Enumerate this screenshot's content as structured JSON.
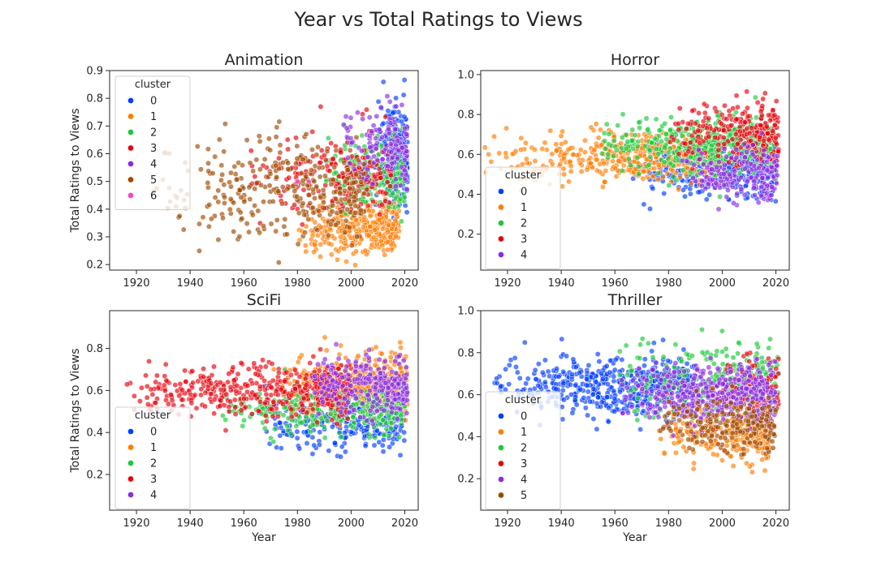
{
  "figure": {
    "title": "Year vs Total Ratings to Views"
  },
  "palette": {
    "0": "#023eff",
    "1": "#ff7c00",
    "2": "#1ac938",
    "3": "#e8000b",
    "4": "#8b2be2",
    "5": "#9f4800",
    "6": "#f14cc1"
  },
  "chart_data": [
    {
      "type": "scatter",
      "title": "Animation",
      "xlabel": "",
      "ylabel": "Total Ratings to Views",
      "xlim": [
        1910,
        2025
      ],
      "ylim": [
        0.18,
        0.9
      ],
      "xticks": [
        "1920",
        "1940",
        "1960",
        "1980",
        "2000",
        "2020"
      ],
      "yticks": [
        "0.2",
        "0.3",
        "0.4",
        "0.5",
        "0.6",
        "0.7",
        "0.8",
        "0.9"
      ],
      "legend": {
        "title": "cluster",
        "placement": "upper-left",
        "entries": [
          "0",
          "1",
          "2",
          "3",
          "4",
          "5",
          "6"
        ]
      },
      "series": [
        {
          "name": "0",
          "x_range": [
            2008,
            2021
          ],
          "y_mean": 0.6,
          "y_sd": 0.1,
          "count": 220
        },
        {
          "name": "1",
          "x_range": [
            1980,
            2018
          ],
          "y_mean": 0.33,
          "y_sd": 0.05,
          "count": 320
        },
        {
          "name": "2",
          "x_range": [
            1990,
            2020
          ],
          "y_mean": 0.53,
          "y_sd": 0.06,
          "count": 220
        },
        {
          "name": "3",
          "x_range": [
            1960,
            2015
          ],
          "y_mean": 0.52,
          "y_sd": 0.07,
          "count": 200
        },
        {
          "name": "4",
          "x_range": [
            1995,
            2021
          ],
          "y_mean": 0.62,
          "y_sd": 0.07,
          "count": 150
        },
        {
          "name": "5",
          "x_range": [
            1925,
            2005
          ],
          "y_mean": 0.47,
          "y_sd": 0.09,
          "count": 320
        },
        {
          "name": "6",
          "x_range": [
            1975,
            1985
          ],
          "y_mean": 0.5,
          "y_sd": 0.04,
          "count": 3
        }
      ]
    },
    {
      "type": "scatter",
      "title": "Horror",
      "xlabel": "",
      "ylabel": "",
      "xlim": [
        1910,
        2025
      ],
      "ylim": [
        0.02,
        1.02
      ],
      "xticks": [
        "1920",
        "1940",
        "1960",
        "1980",
        "2000",
        "2020"
      ],
      "yticks": [
        "0.2",
        "0.4",
        "0.6",
        "0.8",
        "1.0"
      ],
      "legend": {
        "title": "cluster",
        "placement": "lower-left",
        "entries": [
          "0",
          "1",
          "2",
          "3",
          "4"
        ]
      },
      "series": [
        {
          "name": "0",
          "x_range": [
            1965,
            2020
          ],
          "y_mean": 0.52,
          "y_sd": 0.07,
          "count": 350
        },
        {
          "name": "1",
          "x_range": [
            1910,
            2000
          ],
          "y_mean": 0.58,
          "y_sd": 0.06,
          "count": 450
        },
        {
          "name": "2",
          "x_range": [
            1955,
            2020
          ],
          "y_mean": 0.64,
          "y_sd": 0.07,
          "count": 500
        },
        {
          "name": "3",
          "x_range": [
            1980,
            2021
          ],
          "y_mean": 0.7,
          "y_sd": 0.08,
          "count": 250
        },
        {
          "name": "4",
          "x_range": [
            1985,
            2021
          ],
          "y_mean": 0.5,
          "y_sd": 0.07,
          "count": 200
        }
      ]
    },
    {
      "type": "scatter",
      "title": "SciFi",
      "xlabel": "Year",
      "ylabel": "Total Ratings to Views",
      "xlim": [
        1910,
        2025
      ],
      "ylim": [
        0.03,
        0.98
      ],
      "xticks": [
        "1920",
        "1940",
        "1960",
        "1980",
        "2000",
        "2020"
      ],
      "yticks": [
        "0.2",
        "0.4",
        "0.6",
        "0.8"
      ],
      "legend": {
        "title": "cluster",
        "placement": "lower-left",
        "entries": [
          "0",
          "1",
          "2",
          "3",
          "4"
        ]
      },
      "series": [
        {
          "name": "0",
          "x_range": [
            1965,
            2020
          ],
          "y_mean": 0.45,
          "y_sd": 0.07,
          "count": 300
        },
        {
          "name": "1",
          "x_range": [
            1970,
            2021
          ],
          "y_mean": 0.63,
          "y_sd": 0.07,
          "count": 400
        },
        {
          "name": "2",
          "x_range": [
            1950,
            2020
          ],
          "y_mean": 0.5,
          "y_sd": 0.06,
          "count": 300
        },
        {
          "name": "3",
          "x_range": [
            1915,
            2000
          ],
          "y_mean": 0.6,
          "y_sd": 0.06,
          "count": 450
        },
        {
          "name": "4",
          "x_range": [
            1985,
            2021
          ],
          "y_mean": 0.62,
          "y_sd": 0.07,
          "count": 250
        }
      ]
    },
    {
      "type": "scatter",
      "title": "Thriller",
      "xlabel": "Year",
      "ylabel": "",
      "xlim": [
        1910,
        2025
      ],
      "ylim": [
        0.05,
        1.0
      ],
      "xticks": [
        "1920",
        "1940",
        "1960",
        "1980",
        "2000",
        "2020"
      ],
      "yticks": [
        "0.2",
        "0.4",
        "0.6",
        "0.8",
        "1.0"
      ],
      "legend": {
        "title": "cluster",
        "placement": "lower-left",
        "entries": [
          "0",
          "1",
          "2",
          "3",
          "4",
          "5"
        ]
      },
      "series": [
        {
          "name": "0",
          "x_range": [
            1915,
            1990
          ],
          "y_mean": 0.64,
          "y_sd": 0.07,
          "count": 550
        },
        {
          "name": "1",
          "x_range": [
            1975,
            2018
          ],
          "y_mean": 0.42,
          "y_sd": 0.07,
          "count": 300
        },
        {
          "name": "2",
          "x_range": [
            1960,
            2021
          ],
          "y_mean": 0.68,
          "y_sd": 0.08,
          "count": 250
        },
        {
          "name": "3",
          "x_range": [
            1995,
            2021
          ],
          "y_mean": 0.65,
          "y_sd": 0.07,
          "count": 120
        },
        {
          "name": "4",
          "x_range": [
            1960,
            2020
          ],
          "y_mean": 0.6,
          "y_sd": 0.07,
          "count": 450
        },
        {
          "name": "5",
          "x_range": [
            1975,
            2020
          ],
          "y_mean": 0.45,
          "y_sd": 0.07,
          "count": 200
        }
      ]
    }
  ]
}
